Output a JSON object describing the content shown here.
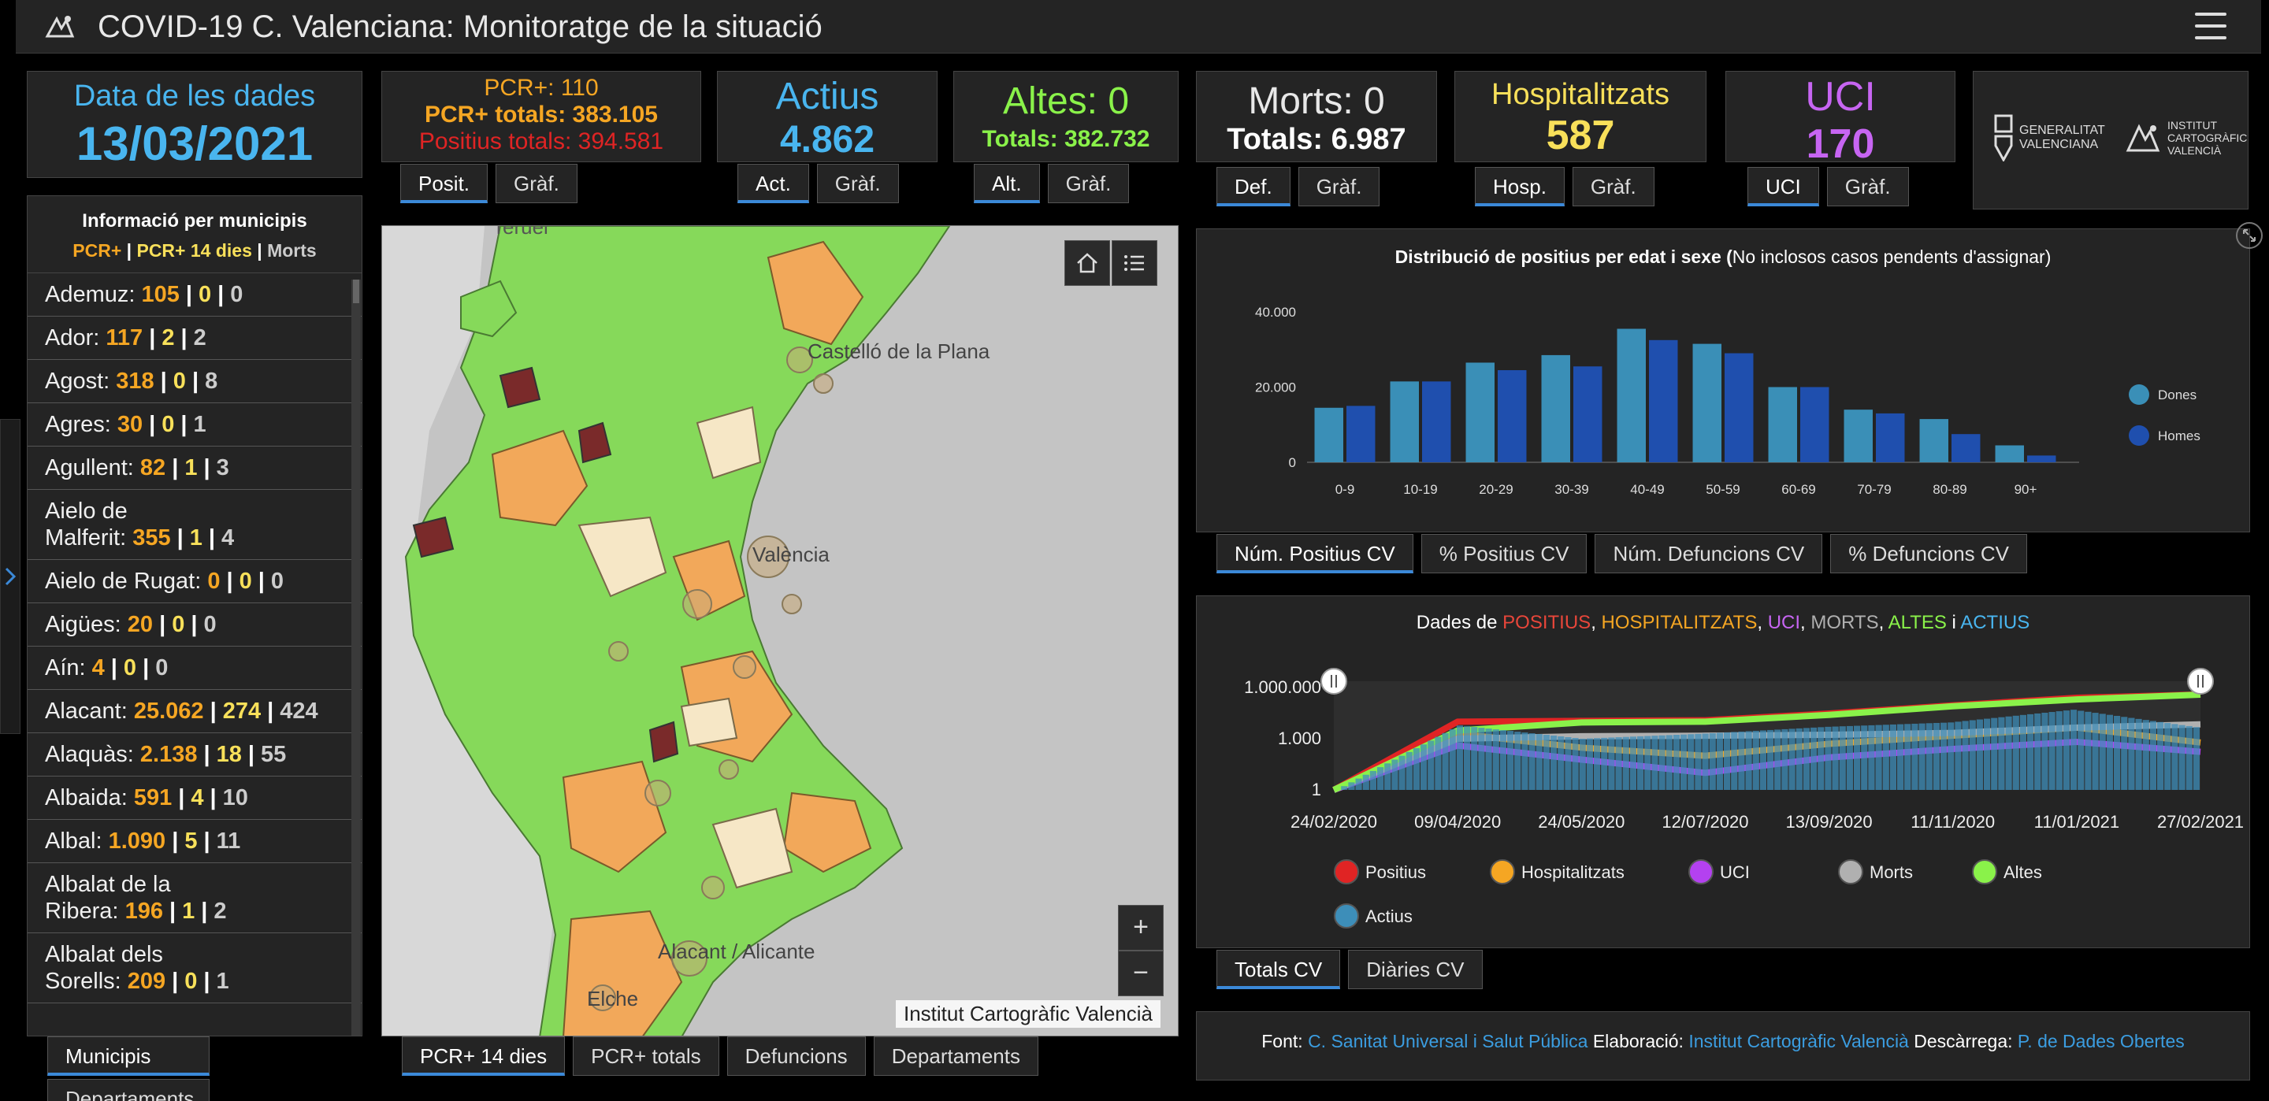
{
  "header": {
    "title": "COVID-19 C. Valenciana: Monitoratge de la situació",
    "logo_icon": "icv-logo-icon",
    "menu_icon": "hamburger-menu-icon"
  },
  "date_card": {
    "label": "Data de les dades",
    "value": "13/03/2021"
  },
  "pcr_card": {
    "line1": "PCR+: 110",
    "line2": "PCR+ totals: 383.105",
    "line3": "Positius totals: 394.581",
    "tabs": [
      "Posit.",
      "Gràf."
    ]
  },
  "actius_card": {
    "label": "Actius",
    "value": "4.862",
    "tabs": [
      "Act.",
      "Gràf."
    ]
  },
  "altes_card": {
    "label": "Altes: 0",
    "value": "Totals: 382.732",
    "tabs": [
      "Alt.",
      "Gràf."
    ]
  },
  "morts_card": {
    "label": "Morts: 0",
    "value": "Totals: 6.987",
    "tabs": [
      "Def.",
      "Gràf."
    ]
  },
  "hosp_card": {
    "label": "Hospitalitzats",
    "value": "587",
    "tabs": [
      "Hosp.",
      "Gràf."
    ]
  },
  "uci_card": {
    "label": "UCI",
    "value": "170",
    "tabs": [
      "UCI",
      "Gràf."
    ]
  },
  "logos": {
    "gva_line1": "GENERALITAT",
    "gva_line2": "VALENCIANA",
    "icv_line1": "INSTITUT",
    "icv_line2": "CARTOGRÀFIC",
    "icv_line3": "VALENCIÀ"
  },
  "municipalities": {
    "title": "Informació per municipis",
    "legend_pcr": "PCR+",
    "legend_pcr14": "PCR+ 14 dies",
    "legend_morts": "Morts",
    "rows": [
      {
        "name": "Ademuz:",
        "a": "105",
        "b": "0",
        "c": "0"
      },
      {
        "name": "Ador:",
        "a": "117",
        "b": "2",
        "c": "2"
      },
      {
        "name": "Agost:",
        "a": "318",
        "b": "0",
        "c": "8"
      },
      {
        "name": "Agres:",
        "a": "30",
        "b": "0",
        "c": "1"
      },
      {
        "name": "Agullent:",
        "a": "82",
        "b": "1",
        "c": "3"
      },
      {
        "name1": "Aielo de",
        "name": "Malferit:",
        "a": "355",
        "b": "1",
        "c": "4"
      },
      {
        "name": "Aielo de Rugat:",
        "a": "0",
        "b": "0",
        "c": "0"
      },
      {
        "name": "Aigües:",
        "a": "20",
        "b": "0",
        "c": "0"
      },
      {
        "name": "Aín:",
        "a": "4",
        "b": "0",
        "c": "0"
      },
      {
        "name": "Alacant:",
        "a": "25.062",
        "b": "274",
        "c": "424"
      },
      {
        "name": "Alaquàs:",
        "a": "2.138",
        "b": "18",
        "c": "55"
      },
      {
        "name": "Albaida:",
        "a": "591",
        "b": "4",
        "c": "10"
      },
      {
        "name": "Albal:",
        "a": "1.090",
        "b": "5",
        "c": "11"
      },
      {
        "name1": "Albalat de la",
        "name": "Ribera:",
        "a": "196",
        "b": "1",
        "c": "2"
      },
      {
        "name1": "Albalat dels",
        "name": "Sorells:",
        "a": "209",
        "b": "0",
        "c": "1"
      }
    ],
    "tabs": [
      "Municipis",
      "Departaments"
    ]
  },
  "map": {
    "labels": [
      "Teruel",
      "Castelló de la Plana",
      "València",
      "Alacant / Alicante",
      "Elche"
    ],
    "attribution": "Institut Cartogràfic Valencià",
    "zoom_in": "+",
    "zoom_out": "−",
    "home_icon": "home-icon",
    "layers_icon": "layer-list-icon",
    "tabs": [
      "PCR+ 14 dies",
      "PCR+ totals",
      "Defuncions",
      "Departaments"
    ]
  },
  "age_chart_panel": {
    "title_bold": "Distribució de positius per edat i sexe (",
    "title_rest": "No inclosos casos pendents d'assignar)",
    "tabs": [
      "Núm. Positius CV",
      "% Positius CV",
      "Núm. Defuncions CV",
      "% Defuncions CV"
    ]
  },
  "time_chart_panel": {
    "title_prefix": "Dades de ",
    "title_positius": "POSITIUS",
    "title_hosp": "HOSPITALITZATS",
    "title_uci": "UCI",
    "title_morts": "MORTS",
    "title_altes": "ALTES",
    "title_and": " i ",
    "title_actius": "ACTIUS",
    "comma": ", ",
    "tabs": [
      "Totals CV",
      "Diàries CV"
    ]
  },
  "footer": {
    "font_label": "Font: ",
    "font_link": "C. Sanitat Universal i Salut Pública",
    "elab_label": " Elaboració: ",
    "elab_link": "Institut Cartogràfic Valencià",
    "desc_label": " Descàrrega: ",
    "desc_link": "P. de Dades Obertes"
  },
  "colors": {
    "positius": "#e02424",
    "hosp": "#f5a623",
    "uci": "#b441f0",
    "morts": "#b0b0b0",
    "altes": "#8af24a",
    "actius": "#3d8eb9",
    "dones": "#3a8fb7",
    "homes": "#1f4fae"
  },
  "chart_data": [
    {
      "type": "bar",
      "title": "Distribució de positius per edat i sexe (No inclosos casos pendents d'assignar)",
      "categories": [
        "0-9",
        "10-19",
        "20-29",
        "30-39",
        "40-49",
        "50-59",
        "60-69",
        "70-79",
        "80-89",
        "90+"
      ],
      "series": [
        {
          "name": "Dones",
          "values": [
            14500,
            21500,
            26500,
            28500,
            35500,
            31500,
            20000,
            14000,
            11500,
            4500
          ]
        },
        {
          "name": "Homes",
          "values": [
            15000,
            21500,
            24500,
            25500,
            32500,
            29000,
            20000,
            13000,
            7500,
            1800
          ]
        }
      ],
      "ylim": [
        0,
        40000
      ],
      "yticks": [
        "0",
        "20.000",
        "40.000"
      ],
      "legend": "right"
    },
    {
      "type": "line",
      "title": "Dades de POSITIUS, HOSPITALITZATS, UCI, MORTS, ALTES i ACTIUS",
      "x_ticks": [
        "24/02/2020",
        "09/04/2020",
        "24/05/2020",
        "12/07/2020",
        "13/09/2020",
        "11/11/2020",
        "11/01/2021",
        "27/02/2021"
      ],
      "y_scale": "log",
      "y_ticks": [
        "1",
        "1.000",
        "1.000.000"
      ],
      "ylim": [
        1,
        1000000
      ],
      "series": [
        {
          "name": "Positius",
          "values": [
            1,
            10000,
            11000,
            12000,
            30000,
            90000,
            250000,
            394000
          ]
        },
        {
          "name": "Hospitalitzats",
          "values": [
            1,
            2000,
            300,
            100,
            500,
            1500,
            4500,
            600
          ]
        },
        {
          "name": "UCI",
          "values": [
            1,
            400,
            60,
            10,
            80,
            250,
            650,
            170
          ]
        },
        {
          "name": "Morts",
          "values": [
            1,
            1000,
            1400,
            1500,
            1700,
            2200,
            4500,
            7000
          ]
        },
        {
          "name": "Altes",
          "values": [
            1,
            3000,
            9000,
            10000,
            25000,
            80000,
            200000,
            383000
          ]
        },
        {
          "name": "Actius",
          "values": [
            1,
            6000,
            1000,
            2000,
            5000,
            9000,
            50000,
            4800
          ]
        }
      ],
      "legend": "bottom"
    }
  ]
}
